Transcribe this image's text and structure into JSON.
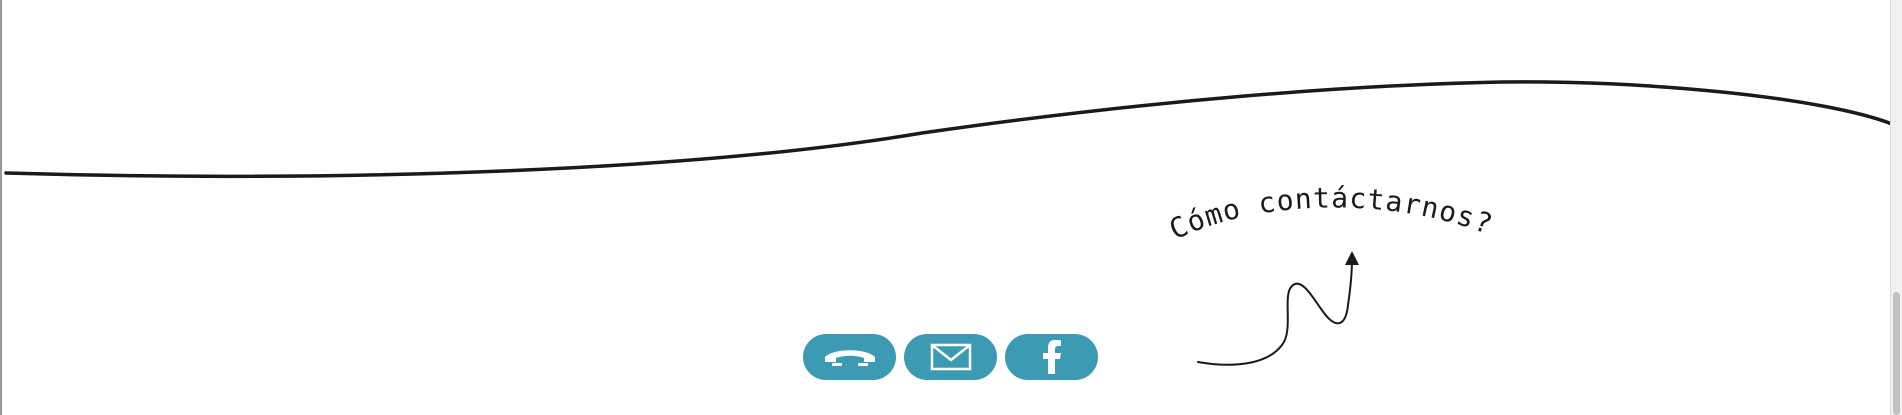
{
  "contact": {
    "heading": "Cómo contáctarnos?",
    "buttons": [
      {
        "name": "phone",
        "icon": "phone-handset-icon"
      },
      {
        "name": "email",
        "icon": "envelope-icon"
      },
      {
        "name": "facebook",
        "icon": "facebook-f-icon"
      }
    ]
  },
  "colors": {
    "accent": "#3c9bb3",
    "ink": "#1a1a1a",
    "background": "#ffffff"
  }
}
